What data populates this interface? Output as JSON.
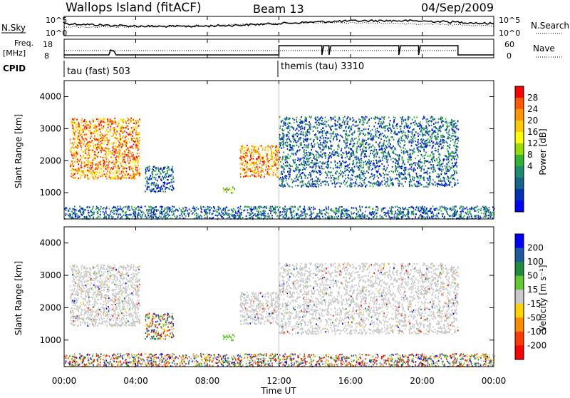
{
  "header": {
    "station": "Wallops Island (fitACF)",
    "beam": "Beam 13",
    "date": "04/Sep/2009"
  },
  "top_panels": {
    "nsky_label": "N.Sky",
    "nsky_ticks": [
      "10^5",
      "10^0"
    ],
    "nsearch_label": "N.Search",
    "nsearch_ticks": [
      "10^5",
      "10^0"
    ],
    "freq_label_1": "Freq.",
    "freq_label_2": "[MHz]",
    "freq_ticks": [
      "18",
      "8"
    ],
    "nave_label": "Nave",
    "nave_ticks": [
      "60",
      "0"
    ],
    "cpid_label": "CPID",
    "cpid_segments": [
      {
        "name": "tau (fast) 503",
        "start_h": 0,
        "end_h": 12
      },
      {
        "name": "themis (tau) 3310",
        "start_h": 12,
        "end_h": 24
      }
    ]
  },
  "x_axis": {
    "title": "Time UT",
    "ticks": [
      "00:00",
      "04:00",
      "08:00",
      "12:00",
      "16:00",
      "20:00",
      "00:00"
    ]
  },
  "colorbars": {
    "power": {
      "title": "Power [dB]",
      "labels": [
        "28",
        "24",
        "20",
        "16",
        "12",
        "8",
        "4"
      ],
      "colors": [
        "#ff0000",
        "#ff5a00",
        "#ff9600",
        "#ffc800",
        "#ffff00",
        "#96dc00",
        "#32b432",
        "#1e8c6e",
        "#14648c",
        "#0032b4",
        "#0000ff"
      ]
    },
    "velocity": {
      "title": "Velocity [m s⁻¹]",
      "labels": [
        "200",
        "100",
        "50",
        "15",
        "-15",
        "-50",
        "-100",
        "-200"
      ],
      "colors": [
        "#0000ff",
        "#1e5aa0",
        "#1e8c3c",
        "#64c832",
        "#c8c8c8",
        "#ffd200",
        "#ff8c00",
        "#ff3c00",
        "#ff0000"
      ]
    }
  },
  "chart_data": [
    {
      "type": "heatmap",
      "name": "power",
      "ylabel": "Slant Range [km]",
      "xlabel": "Time UT",
      "xlim_hours": [
        0,
        24
      ],
      "ylim_km": [
        180,
        4500
      ],
      "yticks": [
        "1000",
        "2000",
        "3000",
        "4000"
      ],
      "scatter_regions": [
        {
          "t0": 0.3,
          "t1": 4.2,
          "r0": 1450,
          "r1": 3350,
          "intensity": "high"
        },
        {
          "t0": 4.5,
          "t1": 6.1,
          "r0": 1050,
          "r1": 1850,
          "intensity": "low"
        },
        {
          "t0": 8.8,
          "t1": 9.5,
          "r0": 1000,
          "r1": 1200,
          "intensity": "mid"
        },
        {
          "t0": 9.8,
          "t1": 12.0,
          "r0": 1500,
          "r1": 2500,
          "intensity": "high"
        },
        {
          "t0": 12.0,
          "t1": 22.0,
          "r0": 1200,
          "r1": 3400,
          "intensity": "low"
        },
        {
          "t0": 0.0,
          "t1": 24.0,
          "r0": 200,
          "r1": 600,
          "intensity": "low"
        }
      ]
    },
    {
      "type": "heatmap",
      "name": "velocity",
      "ylabel": "Slant Range [km]",
      "xlabel": "Time UT",
      "xlim_hours": [
        0,
        24
      ],
      "ylim_km": [
        180,
        4500
      ],
      "yticks": [
        "1000",
        "2000",
        "3000",
        "4000"
      ],
      "scatter_regions": [
        {
          "t0": 0.3,
          "t1": 4.2,
          "r0": 1450,
          "r1": 3350,
          "velocity": "near zero"
        },
        {
          "t0": 4.5,
          "t1": 6.1,
          "r0": 1050,
          "r1": 1850,
          "velocity": "mixed"
        },
        {
          "t0": 8.8,
          "t1": 9.5,
          "r0": 1000,
          "r1": 1200,
          "velocity": "positive"
        },
        {
          "t0": 9.8,
          "t1": 12.0,
          "r0": 1500,
          "r1": 2500,
          "velocity": "near zero"
        },
        {
          "t0": 12.0,
          "t1": 22.0,
          "r0": 1200,
          "r1": 3400,
          "velocity": "near zero"
        },
        {
          "t0": 0.0,
          "t1": 24.0,
          "r0": 200,
          "r1": 600,
          "velocity": "mixed"
        }
      ]
    }
  ]
}
